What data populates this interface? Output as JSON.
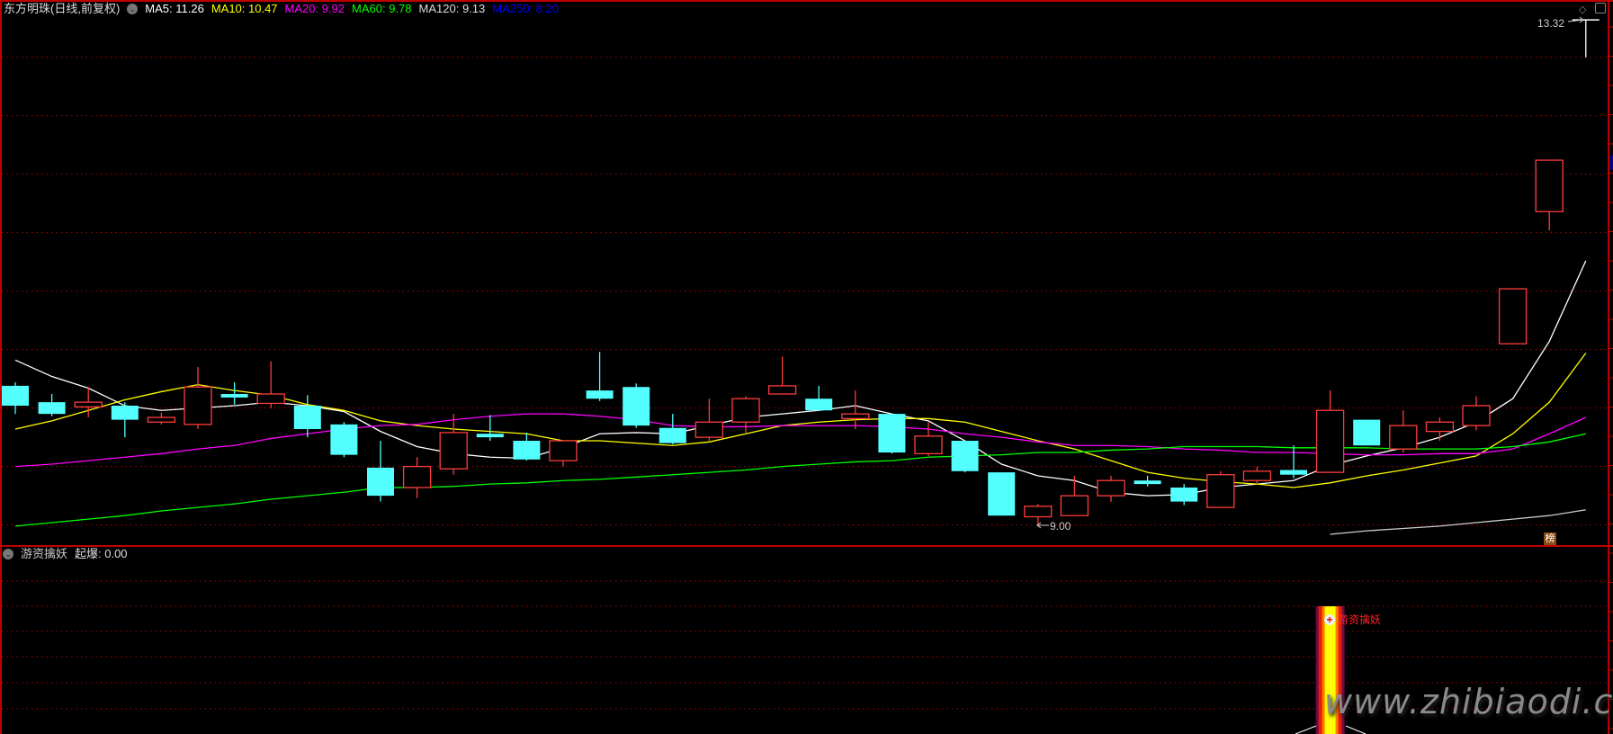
{
  "header": {
    "title": "东方明珠(日线,前复权)",
    "ma_labels": [
      {
        "text": "MA5: 11.26",
        "color": "#ffffff"
      },
      {
        "text": "MA10: 10.47",
        "color": "#ffff00"
      },
      {
        "text": "MA20: 9.92",
        "color": "#ff00ff"
      },
      {
        "text": "MA60: 9.78",
        "color": "#00ff00"
      },
      {
        "text": "MA120: 9.13",
        "color": "#dddddd"
      },
      {
        "text": "MA250: 8.20",
        "color": "#0000ff"
      }
    ]
  },
  "annotations": {
    "high_label": "13.32",
    "low_label": "9.00",
    "badge": "榜"
  },
  "indicator": {
    "name": "游资擒妖",
    "value_label": "起爆: 0.00",
    "signal_text": "游资擒妖",
    "signal_index": 36
  },
  "watermark": "www.zhibiaodi.com",
  "colors": {
    "up": "#ff3c3c",
    "down": "#54ffff",
    "grid": "#b00000",
    "frame": "#c00000",
    "flat": "#ffffff"
  },
  "chart_data": {
    "type": "candlestick",
    "ylim": [
      8.82,
      13.49
    ],
    "gridlines": [
      9.0,
      9.5,
      10.0,
      10.5,
      11.0,
      11.5,
      12.0,
      12.5,
      13.0
    ],
    "candles": [
      [
        10.19,
        10.22,
        9.95,
        10.02
      ],
      [
        10.05,
        10.12,
        9.93,
        9.95
      ],
      [
        10.01,
        10.18,
        9.92,
        10.05
      ],
      [
        10.02,
        10.05,
        9.75,
        9.9
      ],
      [
        9.88,
        9.96,
        9.86,
        9.92
      ],
      [
        9.86,
        10.35,
        9.82,
        10.18
      ],
      [
        10.12,
        10.22,
        10.03,
        10.09
      ],
      [
        10.04,
        10.4,
        10.0,
        10.12
      ],
      [
        10.02,
        10.11,
        9.75,
        9.82
      ],
      [
        9.86,
        9.88,
        9.58,
        9.6
      ],
      [
        9.49,
        9.72,
        9.2,
        9.25
      ],
      [
        9.32,
        9.58,
        9.23,
        9.5
      ],
      [
        9.48,
        9.95,
        9.43,
        9.79
      ],
      [
        9.78,
        9.94,
        9.72,
        9.75
      ],
      [
        9.72,
        9.79,
        9.55,
        9.56
      ],
      [
        9.55,
        9.72,
        9.5,
        9.72
      ],
      [
        10.15,
        10.48,
        10.06,
        10.08
      ],
      [
        10.18,
        10.21,
        9.83,
        9.85
      ],
      [
        9.83,
        9.95,
        9.69,
        9.7
      ],
      [
        9.75,
        10.08,
        9.72,
        9.88
      ],
      [
        9.88,
        10.1,
        9.79,
        10.08
      ],
      [
        10.12,
        10.44,
        10.12,
        10.19
      ],
      [
        10.08,
        10.19,
        9.98,
        9.98
      ],
      [
        9.91,
        10.15,
        9.82,
        9.95
      ],
      [
        9.95,
        9.95,
        9.61,
        9.62
      ],
      [
        9.61,
        9.88,
        9.59,
        9.76
      ],
      [
        9.72,
        9.72,
        9.45,
        9.46
      ],
      [
        9.45,
        9.45,
        9.08,
        9.08
      ],
      [
        9.07,
        9.18,
        9.0,
        9.16
      ],
      [
        9.08,
        9.42,
        9.08,
        9.25
      ],
      [
        9.25,
        9.42,
        9.2,
        9.38
      ],
      [
        9.38,
        9.42,
        9.33,
        9.35
      ],
      [
        9.32,
        9.35,
        9.17,
        9.2
      ],
      [
        9.15,
        9.46,
        9.15,
        9.43
      ],
      [
        9.38,
        9.5,
        9.35,
        9.46
      ],
      [
        9.47,
        9.68,
        9.4,
        9.43
      ],
      [
        9.45,
        10.15,
        9.45,
        9.98
      ],
      [
        9.9,
        9.9,
        9.68,
        9.68
      ],
      [
        9.65,
        9.98,
        9.62,
        9.85
      ],
      [
        9.8,
        9.92,
        9.72,
        9.88
      ],
      [
        9.85,
        10.1,
        9.81,
        10.02
      ],
      [
        10.55,
        11.02,
        10.55,
        11.02
      ],
      [
        11.68,
        12.12,
        11.52,
        12.12
      ],
      [
        13.32,
        13.32,
        13.0,
        13.32
      ]
    ],
    "candle_fields": [
      "open",
      "high",
      "low",
      "close"
    ],
    "ma": [
      {
        "name": "MA5",
        "color": "#ffffff",
        "start": 0,
        "values": [
          10.41,
          10.27,
          10.17,
          10.02,
          9.98,
          10.0,
          10.02,
          10.05,
          10.02,
          9.97,
          9.8,
          9.67,
          9.61,
          9.58,
          9.57,
          9.66,
          9.78,
          9.79,
          9.78,
          9.85,
          9.92,
          9.95,
          9.98,
          10.02,
          9.95,
          9.89,
          9.72,
          9.52,
          9.42,
          9.38,
          9.28,
          9.25,
          9.26,
          9.32,
          9.35,
          9.38,
          9.51,
          9.59,
          9.66,
          9.75,
          9.88,
          10.08,
          10.57,
          11.26
        ]
      },
      {
        "name": "MA10",
        "color": "#ffff00",
        "start": 0,
        "values": [
          9.82,
          9.89,
          9.98,
          10.07,
          10.14,
          10.2,
          10.15,
          10.11,
          10.03,
          9.98,
          9.89,
          9.85,
          9.82,
          9.8,
          9.78,
          9.72,
          9.72,
          9.7,
          9.68,
          9.71,
          9.78,
          9.85,
          9.88,
          9.9,
          9.91,
          9.91,
          9.88,
          9.8,
          9.72,
          9.65,
          9.55,
          9.45,
          9.4,
          9.37,
          9.35,
          9.32,
          9.36,
          9.42,
          9.47,
          9.53,
          9.59,
          9.78,
          10.05,
          10.47
        ]
      },
      {
        "name": "MA20",
        "color": "#ff00ff",
        "start": 0,
        "values": [
          9.5,
          9.52,
          9.55,
          9.58,
          9.61,
          9.65,
          9.68,
          9.74,
          9.78,
          9.82,
          9.85,
          9.86,
          9.9,
          9.93,
          9.95,
          9.95,
          9.93,
          9.9,
          9.85,
          9.84,
          9.84,
          9.85,
          9.85,
          9.85,
          9.84,
          9.82,
          9.78,
          9.75,
          9.71,
          9.68,
          9.68,
          9.67,
          9.65,
          9.64,
          9.62,
          9.62,
          9.61,
          9.6,
          9.6,
          9.61,
          9.61,
          9.65,
          9.78,
          9.92
        ]
      },
      {
        "name": "MA60",
        "color": "#00ff00",
        "start": 0,
        "values": [
          8.99,
          9.02,
          9.05,
          9.08,
          9.12,
          9.15,
          9.18,
          9.22,
          9.25,
          9.28,
          9.32,
          9.32,
          9.33,
          9.35,
          9.36,
          9.38,
          9.39,
          9.41,
          9.43,
          9.45,
          9.47,
          9.5,
          9.52,
          9.54,
          9.55,
          9.58,
          9.59,
          9.6,
          9.62,
          9.62,
          9.64,
          9.65,
          9.67,
          9.67,
          9.67,
          9.66,
          9.66,
          9.66,
          9.65,
          9.65,
          9.65,
          9.67,
          9.71,
          9.78
        ]
      },
      {
        "name": "MA120",
        "color": "#cccccc",
        "start": 36,
        "values": [
          8.92,
          8.95,
          8.97,
          8.99,
          9.02,
          9.05,
          9.08,
          9.13
        ]
      }
    ]
  }
}
